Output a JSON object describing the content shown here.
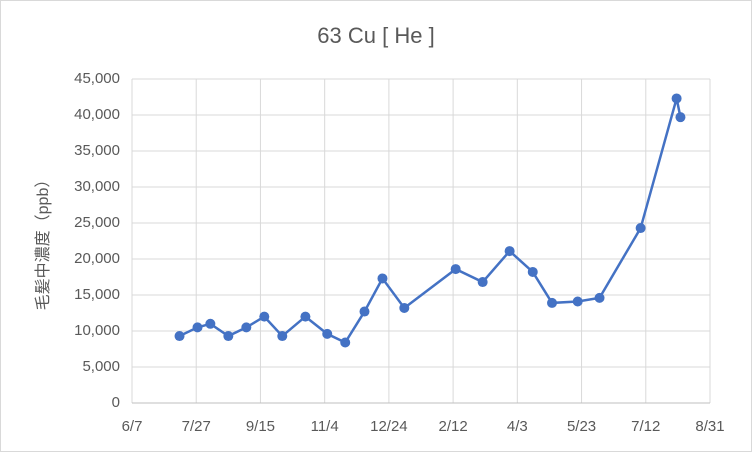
{
  "chart_data": {
    "type": "line",
    "title": "63  Cu  [ He ]",
    "y_label": "毛髪中濃度（ppb）",
    "x": [
      "7/14",
      "7/28",
      "8/7",
      "8/21",
      "9/4",
      "9/18",
      "10/2",
      "10/20",
      "11/6",
      "11/20",
      "12/5",
      "12/19",
      "1/5",
      "2/14",
      "3/7",
      "3/28",
      "4/15",
      "4/30",
      "5/20",
      "6/6",
      "7/8",
      "8/5",
      "8/8"
    ],
    "series": [
      {
        "name": "63 Cu",
        "color": "#4472c4",
        "values": [
          9300,
          10500,
          11000,
          9300,
          10500,
          12000,
          9300,
          12000,
          9600,
          8400,
          12700,
          17300,
          13200,
          18600,
          16800,
          21100,
          18200,
          13900,
          14100,
          14600,
          24300,
          42300,
          39700
        ]
      }
    ],
    "xlim": [
      "6/7",
      "8/31"
    ],
    "xticks": [
      "6/7",
      "7/27",
      "9/15",
      "11/4",
      "12/24",
      "2/12",
      "4/3",
      "5/23",
      "7/12",
      "8/31"
    ],
    "ylim": [
      0,
      45000
    ],
    "yticks": [
      0,
      {
        "value": 5000,
        "label": "5,000"
      },
      {
        "value": 10000,
        "label": "10,000"
      },
      {
        "value": 15000,
        "label": "15,000"
      },
      {
        "value": 20000,
        "label": "20,000"
      },
      {
        "value": 25000,
        "label": "25,000"
      },
      {
        "value": 30000,
        "label": "30,000"
      },
      {
        "value": 35000,
        "label": "35,000"
      },
      {
        "value": 40000,
        "label": "40,000"
      },
      {
        "value": 45000,
        "label": "45,000"
      }
    ],
    "grid": true
  }
}
